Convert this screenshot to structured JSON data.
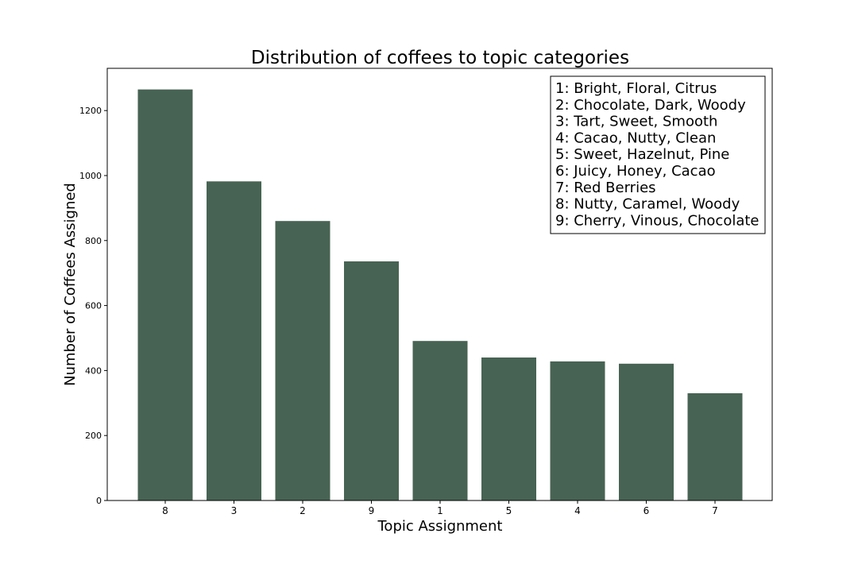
{
  "chart_data": {
    "type": "bar",
    "title": "Distribution of coffees to topic categories",
    "xlabel": "Topic Assignment",
    "ylabel": "Number of Coffees Assigned",
    "categories": [
      "8",
      "3",
      "2",
      "9",
      "1",
      "5",
      "4",
      "6",
      "7"
    ],
    "values": [
      1265,
      982,
      860,
      736,
      491,
      440,
      428,
      421,
      330
    ],
    "ylim": [
      0,
      1330
    ],
    "yticks": [
      0,
      200,
      400,
      600,
      800,
      1000,
      1200
    ],
    "ytick_labels": [
      "0",
      "200",
      "400",
      "600",
      "800",
      "1000",
      "1200"
    ],
    "bar_color": "#476353",
    "grid": false,
    "legend_placement": "top-right",
    "legend_entries": [
      "1: Bright, Floral, Citrus",
      "2: Chocolate, Dark, Woody",
      "3: Tart, Sweet, Smooth",
      "4: Cacao, Nutty, Clean",
      "5: Sweet, Hazelnut, Pine",
      "6: Juicy, Honey, Cacao",
      "7: Red Berries",
      "8: Nutty, Caramel, Woody",
      "9: Cherry, Vinous, Chocolate"
    ]
  }
}
